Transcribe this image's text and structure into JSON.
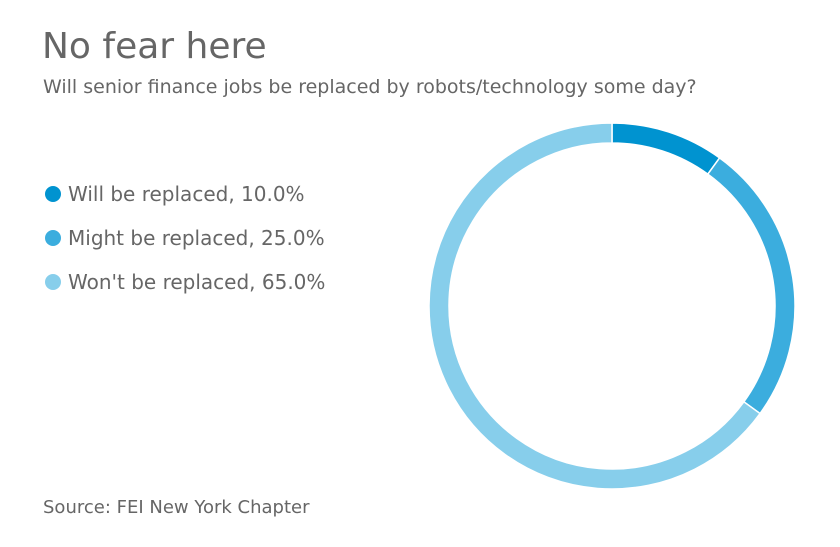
{
  "title": "No fear here",
  "subtitle": "Will senior finance jobs be replaced by robots/technology some day?",
  "source": "Source: FEI New York Chapter",
  "legend": [
    {
      "label": "Will be replaced, 10.0%",
      "color": "#0093d0"
    },
    {
      "label": "Might be replaced, 25.0%",
      "color": "#3badde"
    },
    {
      "label": "Won't be replaced, 65.0%",
      "color": "#87ceeb"
    }
  ],
  "chart_data": {
    "type": "pie",
    "variant": "donut",
    "title": "No fear here",
    "subtitle": "Will senior finance jobs be replaced by robots/technology some day?",
    "categories": [
      "Will be replaced",
      "Might be replaced",
      "Won't be replaced"
    ],
    "values": [
      10.0,
      25.0,
      65.0
    ],
    "unit": "%",
    "colors": [
      "#0093d0",
      "#3badde",
      "#87ceeb"
    ],
    "legend_position": "left",
    "start_angle": "top, clockwise"
  }
}
